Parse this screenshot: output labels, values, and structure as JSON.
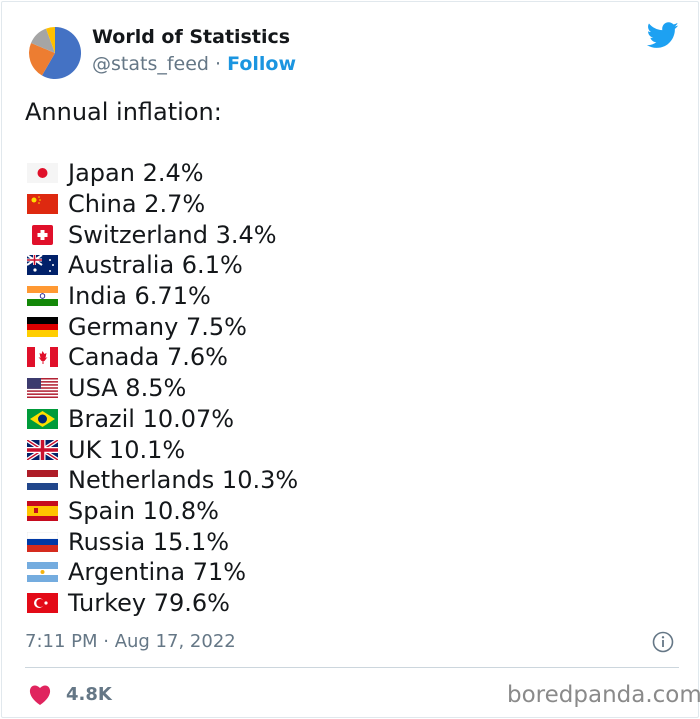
{
  "author": {
    "name": "World of Statistics",
    "handle": "@stats_feed",
    "separator": "·",
    "follow_label": "Follow"
  },
  "tweet": {
    "intro": "Annual inflation:",
    "items": [
      {
        "country": "Japan",
        "text": "Japan 2.4%",
        "flag": "japan"
      },
      {
        "country": "China",
        "text": "China 2.7%",
        "flag": "china"
      },
      {
        "country": "Switzerland",
        "text": "Switzerland 3.4%",
        "flag": "switzerland"
      },
      {
        "country": "Australia",
        "text": "Australia 6.1%",
        "flag": "australia"
      },
      {
        "country": "India",
        "text": "India 6.71%",
        "flag": "india"
      },
      {
        "country": "Germany",
        "text": "Germany 7.5%",
        "flag": "germany"
      },
      {
        "country": "Canada",
        "text": "Canada 7.6%",
        "flag": "canada"
      },
      {
        "country": "USA",
        "text": "USA 8.5%",
        "flag": "usa"
      },
      {
        "country": "Brazil",
        "text": "Brazil 10.07%",
        "flag": "brazil"
      },
      {
        "country": "UK",
        "text": "UK 10.1%",
        "flag": "uk"
      },
      {
        "country": "Netherlands",
        "text": "Netherlands 10.3%",
        "flag": "netherlands"
      },
      {
        "country": "Spain",
        "text": "Spain 10.8%",
        "flag": "spain"
      },
      {
        "country": "Russia",
        "text": "Russia 15.1%",
        "flag": "russia"
      },
      {
        "country": "Argentina",
        "text": "Argentina 71%",
        "flag": "argentina"
      },
      {
        "country": "Turkey",
        "text": "Turkey 79.6%",
        "flag": "turkey"
      }
    ],
    "timestamp": "7:11 PM · Aug 17, 2022",
    "likes": "4.8K"
  },
  "watermark": "boredpanda.com",
  "colors": {
    "twitter_blue": "#1da1f2",
    "follow": "#1b95e0",
    "heart": "#e0245e"
  }
}
